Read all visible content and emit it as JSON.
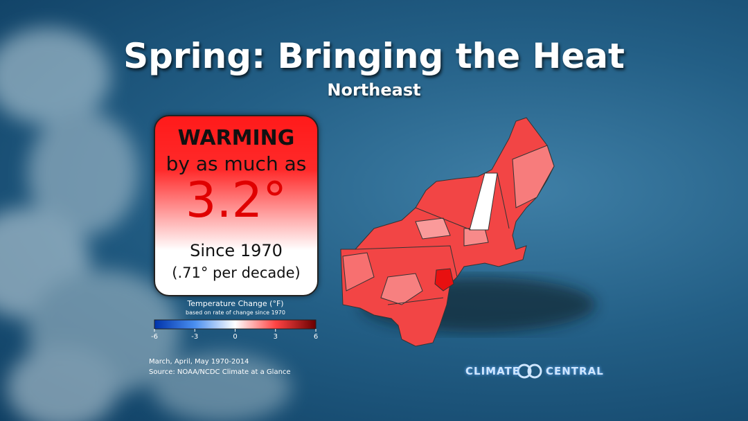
{
  "header": {
    "title": "Spring: Bringing the Heat",
    "subtitle": "Northeast"
  },
  "callout": {
    "headline": "WARMING",
    "lead": "by as much as",
    "figure": "3.2°",
    "since": "Since 1970",
    "rate": "(.71° per decade)"
  },
  "legend": {
    "title": "Temperature Change (°F)",
    "subtitle": "based on rate of change since 1970",
    "range": [
      -6,
      6
    ],
    "ticks": [
      -6,
      -3,
      0,
      3,
      6
    ]
  },
  "footer": {
    "period": "March, April, May 1970-2014",
    "source": "Source: NOAA/NCDC Climate at a Glance"
  },
  "logo": {
    "left": "CLIMATE",
    "right": "CENTRAL"
  }
}
